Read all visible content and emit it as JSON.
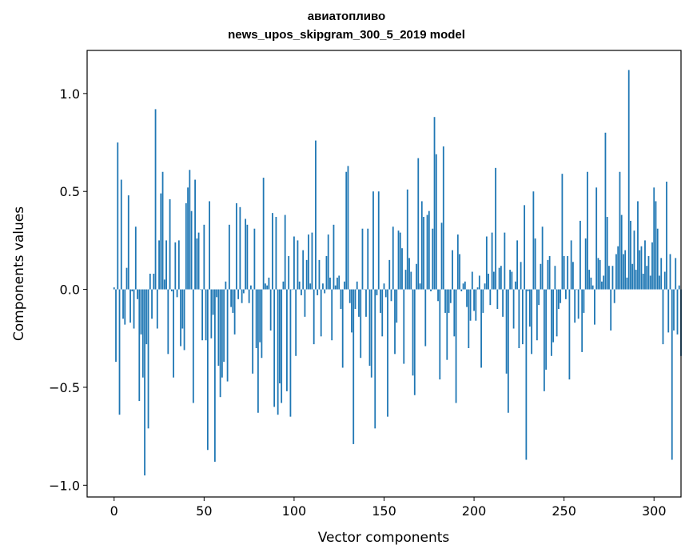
{
  "chart_data": {
    "type": "bar",
    "title": "авиатопливо",
    "subtitle": "news_upos_skipgram_300_5_2019 model",
    "xlabel": "Vector components",
    "ylabel": "Components values",
    "xlim": [
      -15,
      315
    ],
    "ylim": [
      -1.06,
      1.22
    ],
    "xticks": [
      0,
      50,
      100,
      150,
      200,
      250,
      300
    ],
    "yticks": [
      -1.0,
      -0.5,
      0.0,
      0.5,
      1.0
    ],
    "ytick_labels": [
      "−1.0",
      "−0.5",
      "0.0",
      "0.5",
      "1.0"
    ],
    "grid": false,
    "bar_color": "#1f77b4",
    "values": [
      0.01,
      -0.37,
      0.75,
      -0.64,
      0.56,
      -0.15,
      -0.18,
      0.11,
      0.48,
      -0.17,
      -0.01,
      -0.2,
      0.32,
      -0.05,
      -0.57,
      -0.23,
      -0.45,
      -0.95,
      -0.28,
      -0.71,
      0.08,
      -0.15,
      0.08,
      0.92,
      -0.2,
      0.25,
      0.49,
      0.6,
      0.05,
      0.25,
      -0.33,
      0.46,
      -0.01,
      -0.45,
      0.24,
      -0.04,
      0.25,
      -0.29,
      -0.2,
      -0.31,
      0.44,
      0.52,
      0.61,
      0.4,
      -0.58,
      0.56,
      0.26,
      0.29,
      0.0,
      -0.26,
      0.33,
      -0.26,
      -0.82,
      0.45,
      -0.25,
      -0.13,
      -0.88,
      -0.04,
      -0.39,
      -0.55,
      -0.45,
      -0.37,
      0.04,
      -0.47,
      0.33,
      -0.09,
      -0.12,
      -0.23,
      0.44,
      -0.05,
      0.42,
      -0.07,
      -0.02,
      0.36,
      0.33,
      -0.07,
      0.02,
      -0.43,
      0.31,
      -0.3,
      -0.63,
      -0.27,
      -0.35,
      0.57,
      0.03,
      0.02,
      0.06,
      -0.21,
      0.39,
      -0.6,
      0.37,
      -0.64,
      -0.48,
      -0.58,
      0.04,
      0.38,
      -0.52,
      0.17,
      -0.65,
      0.0,
      0.27,
      -0.34,
      0.25,
      0.04,
      -0.03,
      0.2,
      -0.14,
      0.15,
      0.28,
      0.03,
      0.29,
      -0.28,
      0.76,
      -0.03,
      0.15,
      -0.24,
      0.03,
      -0.02,
      0.17,
      0.28,
      0.06,
      -0.26,
      0.33,
      0.02,
      0.06,
      0.07,
      -0.1,
      -0.4,
      0.04,
      0.6,
      0.63,
      -0.07,
      -0.22,
      -0.79,
      -0.1,
      0.04,
      -0.14,
      -0.35,
      0.31,
      0.0,
      -0.14,
      0.31,
      -0.39,
      -0.45,
      0.5,
      -0.71,
      -0.03,
      0.5,
      -0.12,
      -0.24,
      0.03,
      -0.04,
      -0.65,
      0.15,
      -0.06,
      0.32,
      -0.33,
      -0.17,
      0.3,
      0.29,
      0.21,
      -0.38,
      0.1,
      0.51,
      0.16,
      0.09,
      -0.44,
      -0.54,
      0.13,
      0.67,
      0.03,
      0.45,
      0.37,
      -0.29,
      0.38,
      0.4,
      -0.01,
      0.31,
      0.88,
      0.69,
      -0.06,
      -0.46,
      0.34,
      0.73,
      -0.12,
      -0.36,
      -0.12,
      -0.07,
      0.2,
      -0.24,
      -0.58,
      0.28,
      0.18,
      -0.01,
      0.03,
      0.04,
      -0.09,
      -0.3,
      -0.16,
      0.09,
      -0.11,
      -0.16,
      0.01,
      0.07,
      -0.4,
      -0.12,
      0.03,
      0.27,
      0.08,
      -0.08,
      0.29,
      0.09,
      0.62,
      -0.1,
      0.11,
      0.12,
      -0.14,
      0.29,
      -0.43,
      -0.63,
      0.1,
      0.09,
      -0.2,
      0.04,
      0.25,
      -0.3,
      0.14,
      -0.28,
      0.43,
      -0.87,
      -0.01,
      -0.19,
      -0.33,
      0.5,
      0.26,
      -0.26,
      -0.08,
      0.13,
      0.32,
      -0.52,
      -0.41,
      0.15,
      0.17,
      -0.34,
      -0.27,
      0.12,
      -0.24,
      -0.1,
      -0.07,
      0.59,
      0.17,
      -0.05,
      0.17,
      -0.46,
      0.25,
      0.14,
      -0.17,
      0.0,
      -0.15,
      0.35,
      -0.32,
      -0.12,
      0.26,
      0.6,
      0.1,
      0.06,
      0.02,
      -0.18,
      0.52,
      0.16,
      0.15,
      0.04,
      0.07,
      0.8,
      0.37,
      0.12,
      -0.21,
      0.12,
      -0.07,
      0.18,
      0.22,
      0.6,
      0.38,
      0.18,
      0.2,
      0.06,
      1.12,
      0.35,
      0.13,
      0.3,
      0.1,
      0.45,
      0.2,
      0.22,
      0.08,
      0.25,
      0.12,
      0.17,
      0.07,
      0.24,
      0.52,
      0.45,
      0.31,
      0.07,
      0.16,
      -0.28,
      0.09,
      0.55,
      -0.22,
      0.18,
      -0.87,
      -0.21,
      0.16,
      -0.23,
      0.02,
      -0.34
    ]
  }
}
